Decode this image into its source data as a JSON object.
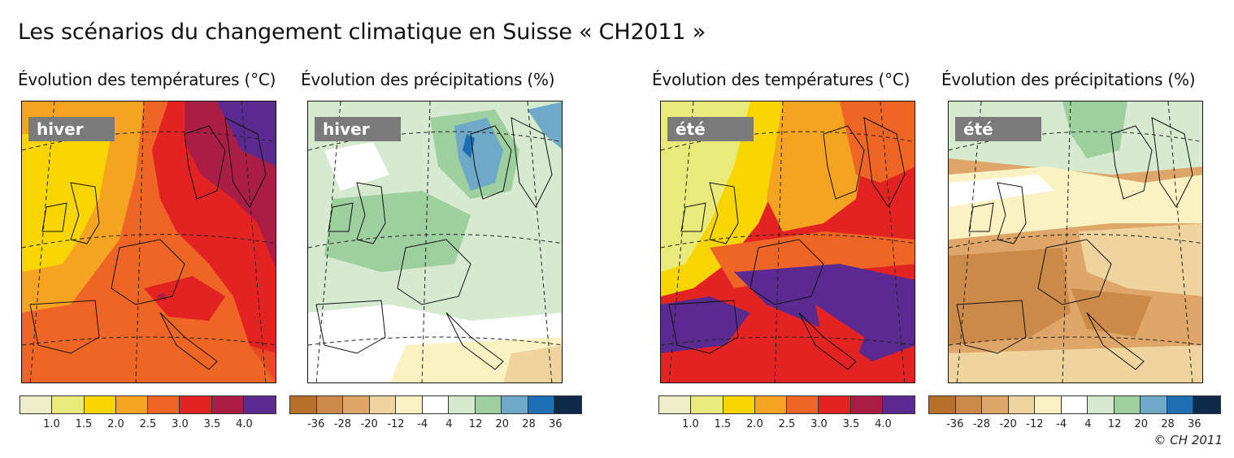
{
  "title": "Les scénarios du changement climatique en Suisse « CH2011 »",
  "panels": [
    {
      "heading": "Évolution des températures (°C)",
      "season": "hiver",
      "variable": "temperature"
    },
    {
      "heading": "Évolution des précipitations (%)",
      "season": "hiver",
      "variable": "precipitation"
    },
    {
      "heading": "Évolution des températures (°C)",
      "season": "été",
      "variable": "temperature"
    },
    {
      "heading": "Évolution des précipitations (%)",
      "season": "été",
      "variable": "precipitation"
    }
  ],
  "legends": {
    "temperature": {
      "colors": [
        "#eeeeca",
        "#e8ea7a",
        "#f7d500",
        "#f5a422",
        "#ee6525",
        "#e32222",
        "#aa1d44",
        "#5a2a90"
      ],
      "ticks": [
        "1.0",
        "1.5",
        "2.0",
        "2.5",
        "3.0",
        "3.5",
        "4.0"
      ]
    },
    "precipitation": {
      "colors": [
        "#b5702b",
        "#cc8a48",
        "#dfa66a",
        "#efd49e",
        "#fbf2c3",
        "#ffffff",
        "#d6ead0",
        "#9ecf9e",
        "#6ea9c8",
        "#1f6fb5",
        "#0d2a4a"
      ],
      "ticks": [
        "-36",
        "-28",
        "-20",
        "-12",
        "-4",
        "4",
        "12",
        "20",
        "28",
        "36"
      ]
    }
  },
  "copyright": "© CH 2011"
}
